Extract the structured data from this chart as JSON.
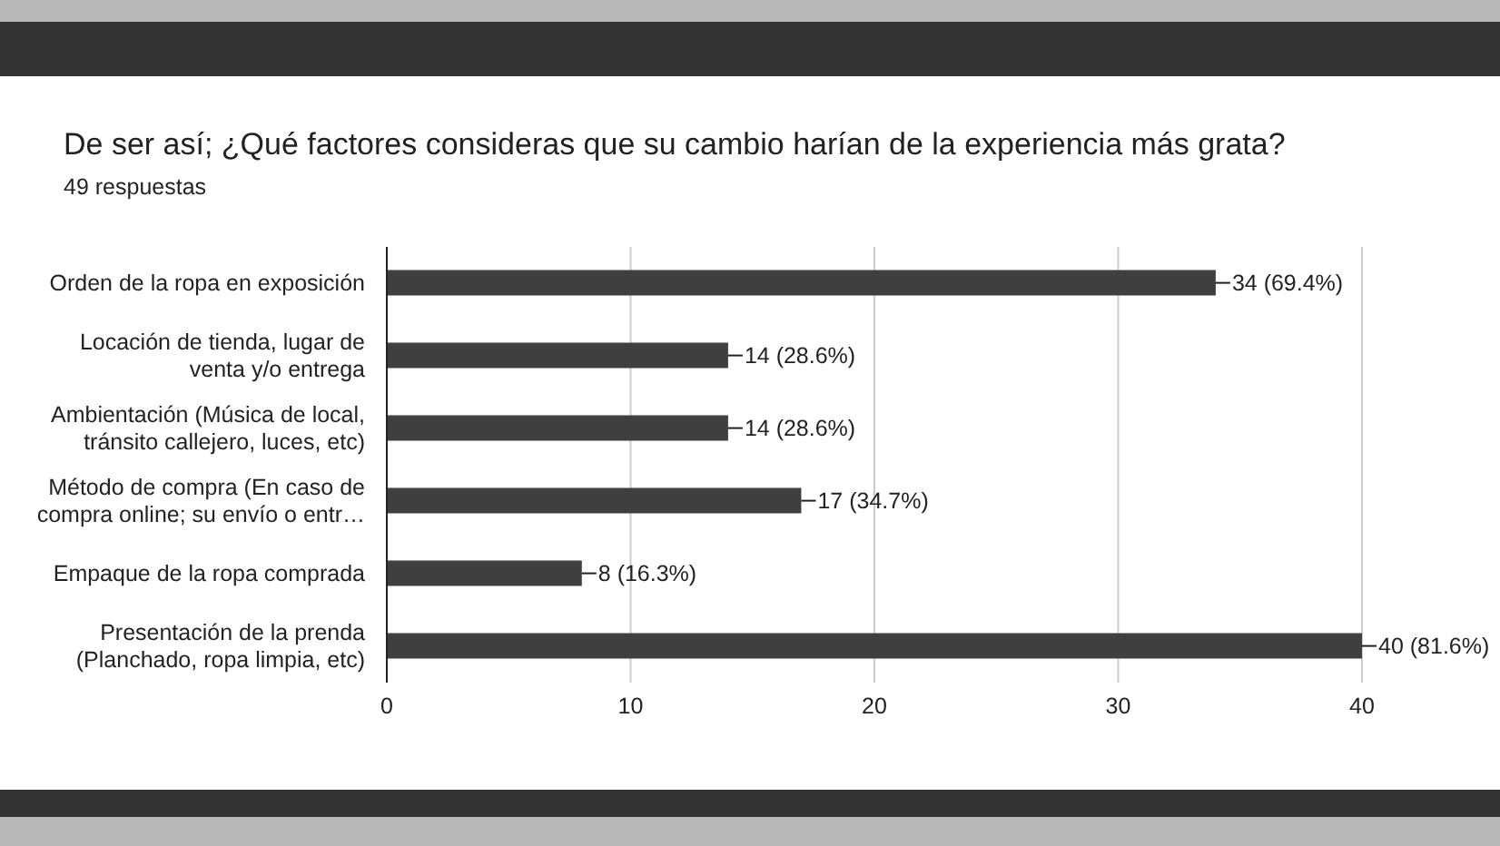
{
  "chart_data": {
    "type": "bar",
    "orientation": "horizontal",
    "title": "De ser así; ¿Qué factores consideras que su cambio harían de la experiencia más grata?",
    "subtitle": "49 respuestas",
    "categories": [
      "Orden de la ropa en exposición",
      "Locación de tienda, lugar de venta y/o entrega",
      "Ambientación (Música de local, tránsito callejero, luces, etc)",
      "Método de compra (En caso de compra online; su envío o entr…",
      "Empaque de la ropa comprada",
      "Presentación de la prenda (Planchado, ropa limpia, etc)"
    ],
    "values": [
      34,
      14,
      14,
      17,
      8,
      40
    ],
    "value_labels": [
      "34 (69.4%)",
      "14 (28.6%)",
      "14 (28.6%)",
      "17 (34.7%)",
      "8 (16.3%)",
      "40 (81.6%)"
    ],
    "color": "#3f3f3f",
    "xlim": [
      0,
      40
    ],
    "xticks": [
      0,
      10,
      20,
      30,
      40
    ],
    "grid": "x"
  }
}
